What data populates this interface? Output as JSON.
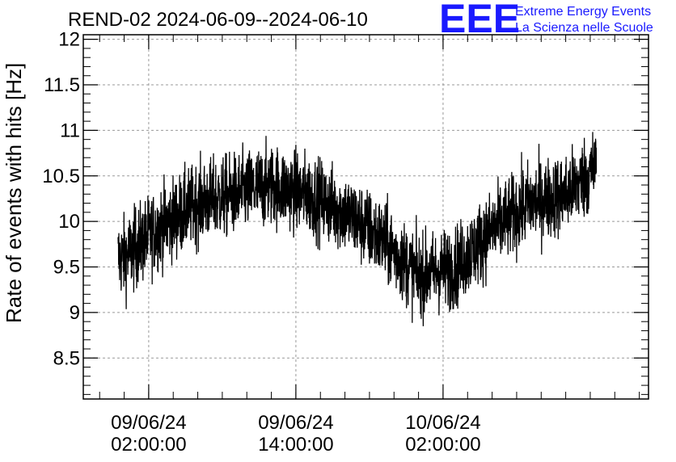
{
  "chart_data": {
    "type": "line",
    "title": "REND-02 2024-06-09--2024-06-10",
    "xlabel": "",
    "ylabel": "Rate of events with hits [Hz]",
    "x_range": [
      "2024-06-08 20:40",
      "2024-06-10 18:45"
    ],
    "ylim": [
      8.05,
      12.05
    ],
    "y_ticks": [
      8.5,
      9,
      9.5,
      10,
      10.5,
      11,
      11.5,
      12
    ],
    "y_tick_labels": [
      "8.5",
      "9",
      "9.5",
      "10",
      "10.5",
      "11",
      "11.5",
      "12"
    ],
    "x_ticks": [
      {
        "date": "09/06/24",
        "time": "02:00:00",
        "at": "2024-06-09 02:00"
      },
      {
        "date": "09/06/24",
        "time": "14:00:00",
        "at": "2024-06-09 14:00"
      },
      {
        "date": "10/06/24",
        "time": "02:00:00",
        "at": "2024-06-10 02:00"
      }
    ],
    "grid": true,
    "line_color": "#000000",
    "series": [
      {
        "x": [
          "2024-06-09 00:00",
          "2024-06-09 03:00",
          "2024-06-09 06:00",
          "2024-06-09 09:00",
          "2024-06-09 12:00",
          "2024-06-09 15:00",
          "2024-06-09 18:00",
          "2024-06-09 21:00",
          "2024-06-10 00:00",
          "2024-06-10 03:00",
          "2024-06-10 06:00",
          "2024-06-10 09:00",
          "2024-06-10 12:00",
          "2024-06-10 14:30"
        ],
        "values": [
          9.6,
          9.95,
          10.2,
          10.3,
          10.4,
          10.3,
          10.1,
          9.8,
          9.4,
          9.5,
          9.9,
          10.2,
          10.3,
          10.6
        ],
        "spread": 0.4
      }
    ]
  },
  "logo": {
    "mark": "EEE",
    "line1": "Extreme Energy Events",
    "line2": "La Scienza nelle Scuole",
    "color": "#1a1aff"
  }
}
